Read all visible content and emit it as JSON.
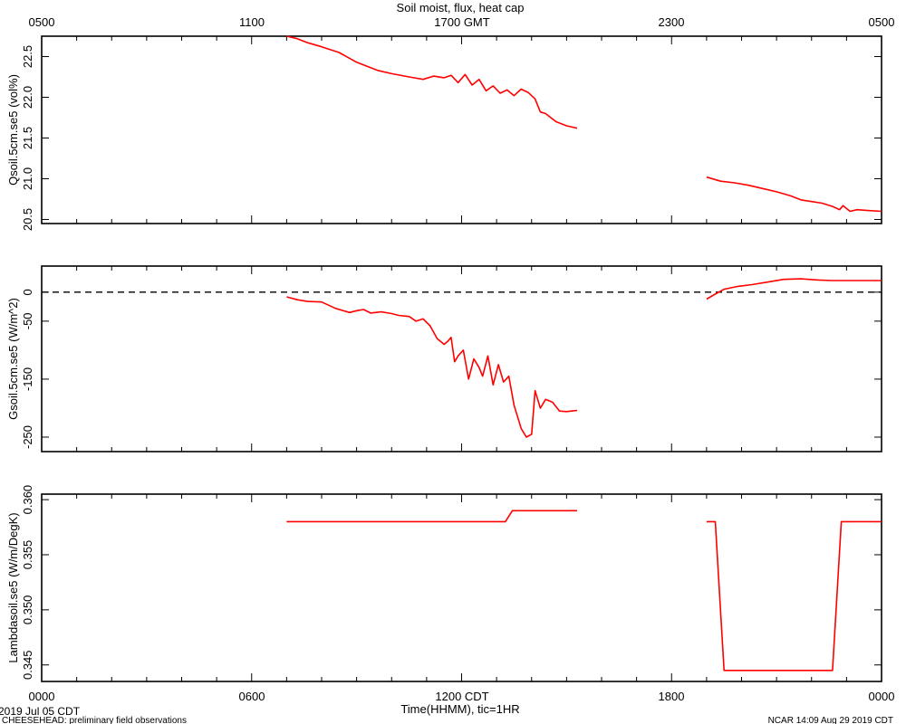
{
  "header": {
    "title": "Soil moist, flux, heat cap",
    "top_ticks": [
      "0500",
      "1100",
      "1700 GMT",
      "2300",
      "0500"
    ]
  },
  "footer": {
    "bottom_ticks": [
      "0000",
      "0600",
      "1200 CDT",
      "1800",
      "0000"
    ],
    "xlabel": "Time(HHMM), tic=1HR",
    "date": "2019 Jul 05 CDT",
    "project": "CHEESEHEAD: preliminary field observations",
    "stamp": "NCAR 14:09 Aug 29 2019 CDT"
  },
  "colors": {
    "series": "#ff0000",
    "axis": "#000000"
  },
  "chart_data": [
    {
      "type": "line",
      "ylabel": "Qsoil.5cm.se5 (vol%)",
      "ylim": [
        20.45,
        22.75
      ],
      "yticks": [
        "20.5",
        "21.0",
        "21.5",
        "22.0",
        "22.5"
      ],
      "ytick_values": [
        20.5,
        21.0,
        21.5,
        22.0,
        22.5
      ],
      "segments": [
        [
          [
            7.0,
            22.75
          ],
          [
            7.3,
            22.72
          ],
          [
            7.6,
            22.67
          ],
          [
            8.0,
            22.62
          ],
          [
            8.5,
            22.55
          ],
          [
            9.0,
            22.43
          ],
          [
            9.3,
            22.38
          ],
          [
            9.6,
            22.33
          ],
          [
            10.0,
            22.29
          ],
          [
            10.5,
            22.25
          ],
          [
            10.9,
            22.22
          ],
          [
            11.2,
            22.26
          ],
          [
            11.5,
            22.24
          ],
          [
            11.7,
            22.27
          ],
          [
            11.9,
            22.18
          ],
          [
            12.1,
            22.28
          ],
          [
            12.3,
            22.15
          ],
          [
            12.5,
            22.22
          ],
          [
            12.7,
            22.08
          ],
          [
            12.9,
            22.14
          ],
          [
            13.1,
            22.05
          ],
          [
            13.3,
            22.09
          ],
          [
            13.5,
            22.02
          ],
          [
            13.7,
            22.1
          ],
          [
            13.9,
            22.06
          ],
          [
            14.1,
            21.98
          ],
          [
            14.25,
            21.82
          ],
          [
            14.4,
            21.8
          ],
          [
            14.7,
            21.7
          ],
          [
            15.0,
            21.65
          ],
          [
            15.3,
            21.62
          ]
        ],
        [
          [
            19.0,
            21.02
          ],
          [
            19.4,
            20.97
          ],
          [
            19.8,
            20.95
          ],
          [
            20.2,
            20.92
          ],
          [
            20.6,
            20.88
          ],
          [
            21.0,
            20.84
          ],
          [
            21.4,
            20.79
          ],
          [
            21.7,
            20.74
          ],
          [
            22.0,
            20.72
          ],
          [
            22.3,
            20.7
          ],
          [
            22.6,
            20.66
          ],
          [
            22.8,
            20.62
          ],
          [
            22.9,
            20.67
          ],
          [
            23.1,
            20.6
          ],
          [
            23.3,
            20.62
          ],
          [
            23.6,
            20.61
          ],
          [
            24.0,
            20.6
          ]
        ]
      ]
    },
    {
      "type": "line",
      "ylabel": "Gsoil.5cm.se5 (W/m^2)",
      "ylim": [
        -275,
        45
      ],
      "yticks": [
        "0",
        "-50",
        "-150",
        "-250"
      ],
      "ytick_values": [
        0,
        -50,
        -150,
        -250
      ],
      "reference_line": 0,
      "segments": [
        [
          [
            7.0,
            -8
          ],
          [
            7.3,
            -13
          ],
          [
            7.6,
            -16
          ],
          [
            8.0,
            -17
          ],
          [
            8.4,
            -28
          ],
          [
            8.8,
            -35
          ],
          [
            9.0,
            -32
          ],
          [
            9.2,
            -30
          ],
          [
            9.4,
            -36
          ],
          [
            9.7,
            -34
          ],
          [
            10.0,
            -37
          ],
          [
            10.2,
            -40
          ],
          [
            10.5,
            -42
          ],
          [
            10.7,
            -50
          ],
          [
            10.9,
            -46
          ],
          [
            11.1,
            -58
          ],
          [
            11.3,
            -80
          ],
          [
            11.5,
            -90
          ],
          [
            11.6,
            -85
          ],
          [
            11.7,
            -78
          ],
          [
            11.8,
            -120
          ],
          [
            11.9,
            -110
          ],
          [
            12.05,
            -100
          ],
          [
            12.2,
            -150
          ],
          [
            12.35,
            -115
          ],
          [
            12.5,
            -130
          ],
          [
            12.6,
            -145
          ],
          [
            12.75,
            -110
          ],
          [
            12.9,
            -160
          ],
          [
            13.05,
            -125
          ],
          [
            13.2,
            -155
          ],
          [
            13.35,
            -145
          ],
          [
            13.5,
            -195
          ],
          [
            13.7,
            -235
          ],
          [
            13.85,
            -250
          ],
          [
            14.0,
            -245
          ],
          [
            14.1,
            -170
          ],
          [
            14.25,
            -200
          ],
          [
            14.4,
            -185
          ],
          [
            14.6,
            -190
          ],
          [
            14.8,
            -205
          ],
          [
            15.0,
            -206
          ],
          [
            15.3,
            -204
          ]
        ],
        [
          [
            19.0,
            -12
          ],
          [
            19.2,
            -5
          ],
          [
            19.5,
            5
          ],
          [
            19.9,
            10
          ],
          [
            20.3,
            13
          ],
          [
            20.8,
            18
          ],
          [
            21.2,
            22
          ],
          [
            21.7,
            23
          ],
          [
            22.2,
            21
          ],
          [
            22.6,
            20
          ],
          [
            23.0,
            20
          ],
          [
            23.5,
            20
          ],
          [
            24.0,
            20
          ]
        ]
      ]
    },
    {
      "type": "line",
      "ylabel": "Lambdasoil.se5 (W/m/DegK)",
      "ylim": [
        0.3435,
        0.3605
      ],
      "yticks": [
        "0.345",
        "0.350",
        "0.355",
        "0.360"
      ],
      "ytick_values": [
        0.345,
        0.35,
        0.355,
        0.36
      ],
      "segments": [
        [
          [
            7.0,
            0.358
          ],
          [
            13.25,
            0.358
          ],
          [
            13.45,
            0.359
          ],
          [
            15.3,
            0.359
          ]
        ],
        [
          [
            19.0,
            0.358
          ],
          [
            19.25,
            0.358
          ],
          [
            19.5,
            0.3445
          ],
          [
            22.6,
            0.3445
          ],
          [
            22.85,
            0.358
          ],
          [
            24.0,
            0.358
          ]
        ]
      ]
    }
  ]
}
